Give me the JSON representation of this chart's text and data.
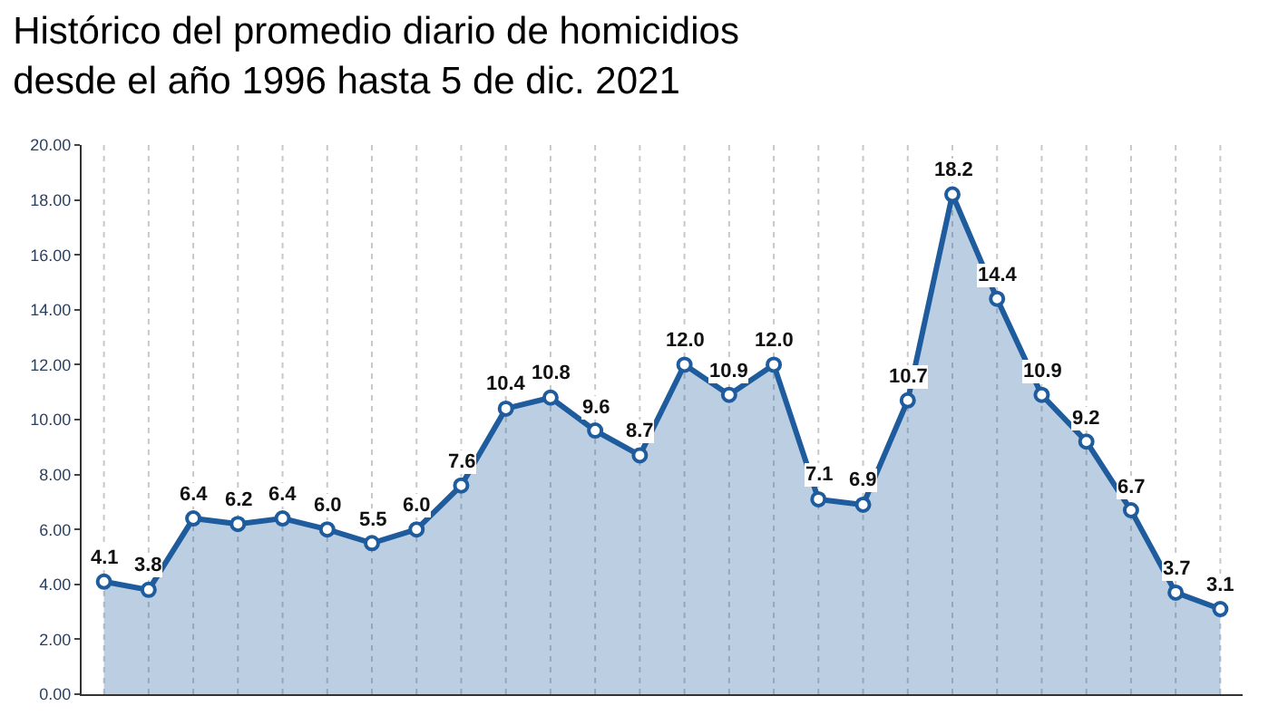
{
  "chart_data": {
    "type": "area",
    "title": "Histórico del promedio diario de homicidios\ndesde el año 1996 hasta 5 de dic. 2021",
    "categories": [
      null,
      null,
      null,
      null,
      null,
      null,
      null,
      null,
      null,
      null,
      null,
      null,
      null,
      null,
      null,
      null,
      null,
      null,
      null,
      null,
      null,
      null,
      null,
      null,
      null,
      null
    ],
    "series": [
      {
        "color": "#1f5c9e",
        "values": [
          4.1,
          3.8,
          6.4,
          6.2,
          6.4,
          6.0,
          5.5,
          6.0,
          7.6,
          10.4,
          10.8,
          9.6,
          8.7,
          12.0,
          10.9,
          12.0,
          7.1,
          6.9,
          10.7,
          18.2,
          14.4,
          10.9,
          9.2,
          6.7,
          3.7,
          3.1
        ]
      }
    ],
    "ylim": [
      0,
      20
    ],
    "yticks": [
      {
        "value": 0,
        "label": "0.00"
      },
      {
        "value": 2,
        "label": "2.00"
      },
      {
        "value": 4,
        "label": "4.00"
      },
      {
        "value": 6,
        "label": "6.00"
      },
      {
        "value": 8,
        "label": "8.00"
      },
      {
        "value": 10,
        "label": "10.00"
      },
      {
        "value": 12,
        "label": "12.00"
      },
      {
        "value": 14,
        "label": "14.00"
      },
      {
        "value": 16,
        "label": "16.00"
      },
      {
        "value": 18,
        "label": "18.00"
      },
      {
        "value": 20,
        "label": "20.00"
      }
    ],
    "value_labels": [
      "4.1",
      "3.8",
      "6.4",
      "6.2",
      "6.4",
      "6.0",
      "5.5",
      "6.0",
      "7.6",
      "10.4",
      "10.8",
      "9.6",
      "8.7",
      "12.0",
      "10.9",
      "12.0",
      "7.1",
      "6.9",
      "10.7",
      "18.2",
      "14.4",
      "10.9",
      "9.2",
      "6.7",
      "3.7",
      "3.1"
    ],
    "grid": "x",
    "marker": "circle",
    "line_style": "solid",
    "legend": false
  }
}
